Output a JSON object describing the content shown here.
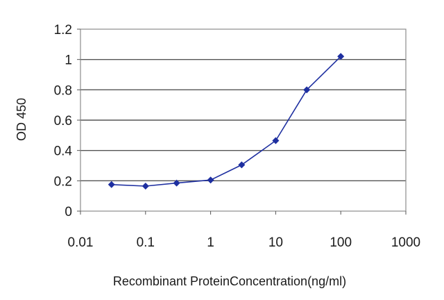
{
  "chart_data": {
    "type": "line",
    "xscale": "log",
    "xlabel": "Recombinant ProteinConcentration(ng/ml)",
    "ylabel": "OD 450",
    "xlim": [
      0.01,
      1000
    ],
    "ylim": [
      0,
      1.2
    ],
    "x_ticks": [
      "0.01",
      "0.1",
      "1",
      "10",
      "100",
      "1000"
    ],
    "y_ticks": [
      "0",
      "0.2",
      "0.4",
      "0.6",
      "0.8",
      "1",
      "1.2"
    ],
    "grid": "horizontal",
    "series": [
      {
        "color": "#1e2fa0",
        "marker": "diamond",
        "points": [
          {
            "x": 0.03,
            "y": 0.175
          },
          {
            "x": 0.1,
            "y": 0.165
          },
          {
            "x": 0.3,
            "y": 0.185
          },
          {
            "x": 1,
            "y": 0.205
          },
          {
            "x": 3,
            "y": 0.305
          },
          {
            "x": 10,
            "y": 0.465
          },
          {
            "x": 30,
            "y": 0.8
          },
          {
            "x": 100,
            "y": 1.02
          }
        ]
      }
    ]
  }
}
